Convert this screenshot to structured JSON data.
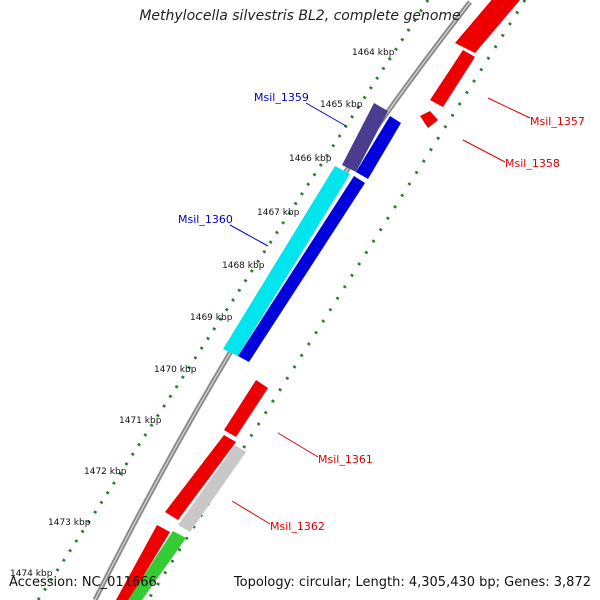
{
  "title": "Methylocella silvestris BL2, complete genome",
  "accession": "Accession: NC_011666",
  "topology": "Topology: circular; Length: 4,305,430 bp; Genes: 3,872",
  "colors": {
    "backbone": "#8a8a8a",
    "tick_dots": "#2e7d32",
    "forward_dark": "#0000dd",
    "cyan": "#00e5ee",
    "purple": "#4a3d8f",
    "red": "#ee0000",
    "gray_feature": "#c8c8c8",
    "green": "#33cc33",
    "label_blue": "#0000cc",
    "label_red": "#dd0000"
  },
  "ticks": [
    {
      "label": "1464 kbp"
    },
    {
      "label": "1465 kbp"
    },
    {
      "label": "1466 kbp"
    },
    {
      "label": "1467 kbp"
    },
    {
      "label": "1468 kbp"
    },
    {
      "label": "1469 kbp"
    },
    {
      "label": "1470 kbp"
    },
    {
      "label": "1471 kbp"
    },
    {
      "label": "1472 kbp"
    },
    {
      "label": "1473 kbp"
    },
    {
      "label": "1474 kbp"
    }
  ],
  "gene_labels": [
    {
      "text": "Msil_1359",
      "color": "label_blue"
    },
    {
      "text": "Msil_1360",
      "color": "label_blue"
    },
    {
      "text": "Msil_1357",
      "color": "label_red"
    },
    {
      "text": "Msil_1358",
      "color": "label_red"
    },
    {
      "text": "Msil_1361",
      "color": "label_red"
    },
    {
      "text": "Msil_1362",
      "color": "label_red"
    }
  ]
}
